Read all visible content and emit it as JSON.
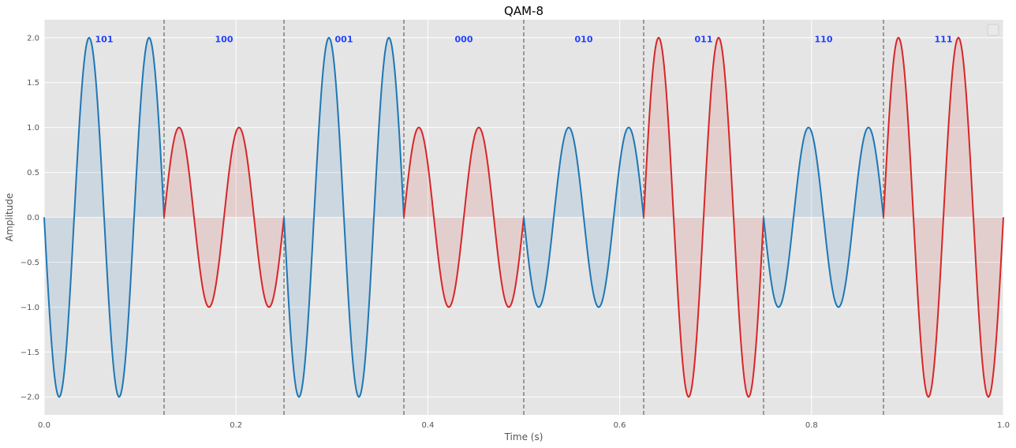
{
  "chart_data": {
    "type": "line",
    "title": "QAM-8",
    "xlabel": "Time (s)",
    "ylabel": "Amplitude",
    "xlim": [
      0,
      1
    ],
    "ylim": [
      -2.2,
      2.2
    ],
    "xticks": [
      "0.0",
      "0.2",
      "0.4",
      "0.6",
      "0.8",
      "1.0"
    ],
    "xtick_values": [
      0,
      0.2,
      0.4,
      0.6,
      0.8,
      1.0
    ],
    "yticks": [
      "2.0",
      "1.5",
      "1.0",
      "0.5",
      "0.0",
      "−0.5",
      "−1.0",
      "−1.5",
      "−2.0"
    ],
    "ytick_values": [
      2.0,
      1.5,
      1.0,
      0.5,
      0.0,
      -0.5,
      -1.0,
      -1.5,
      -2.0
    ],
    "grid": true,
    "legend": "top-right (empty)",
    "carrier_cycles_per_symbol": 2,
    "symbol_boundaries": [
      0.125,
      0.25,
      0.375,
      0.5,
      0.625,
      0.75,
      0.875
    ],
    "symbols": [
      {
        "bits": "101",
        "t_start": 0.0,
        "t_end": 0.125,
        "amplitude": 2,
        "phase": "0",
        "color": "#1f77b4"
      },
      {
        "bits": "100",
        "t_start": 0.125,
        "t_end": 0.25,
        "amplitude": 1,
        "phase": "180",
        "color": "#d62728"
      },
      {
        "bits": "001",
        "t_start": 0.25,
        "t_end": 0.375,
        "amplitude": 2,
        "phase": "0",
        "color": "#1f77b4"
      },
      {
        "bits": "000",
        "t_start": 0.375,
        "t_end": 0.5,
        "amplitude": 1,
        "phase": "180",
        "color": "#d62728"
      },
      {
        "bits": "010",
        "t_start": 0.5,
        "t_end": 0.625,
        "amplitude": 1,
        "phase": "0",
        "color": "#1f77b4"
      },
      {
        "bits": "011",
        "t_start": 0.625,
        "t_end": 0.75,
        "amplitude": 2,
        "phase": "180",
        "color": "#d62728"
      },
      {
        "bits": "110",
        "t_start": 0.75,
        "t_end": 0.875,
        "amplitude": 1,
        "phase": "0",
        "color": "#1f77b4"
      },
      {
        "bits": "111",
        "t_start": 0.875,
        "t_end": 1.0,
        "amplitude": 2,
        "phase": "180",
        "color": "#d62728"
      }
    ],
    "colors": {
      "blue": "#1f77b4",
      "red": "#d62728",
      "bit_label": "#1f3fff",
      "plot_background": "#e5e5e5",
      "boundary_line": "#808080"
    }
  }
}
